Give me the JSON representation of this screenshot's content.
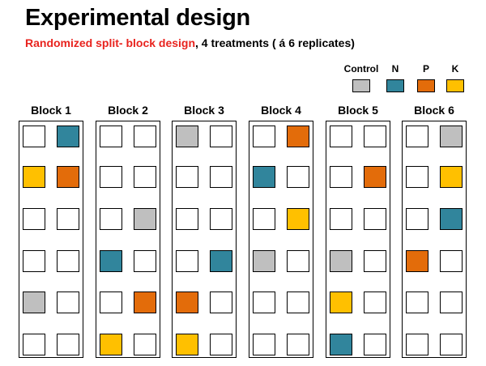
{
  "title": "Experimental design",
  "subtitle": {
    "design": "Randomized split- block design",
    "rest": ", 4 treatments ( ",
    "accent": "á",
    "tail": " 6 replicates)"
  },
  "legend": [
    {
      "key": "control",
      "label": "Control",
      "color": "#bfbfbf"
    },
    {
      "key": "n",
      "label": "N",
      "color": "#31859c"
    },
    {
      "key": "p",
      "label": "P",
      "color": "#e36c0a"
    },
    {
      "key": "k",
      "label": "K",
      "color": "#ffc000"
    }
  ],
  "blocks": [
    {
      "label": "Block 1",
      "rows": [
        [
          "empty",
          "n"
        ],
        [
          "k",
          "p"
        ],
        [
          "empty",
          "empty"
        ],
        [
          "empty",
          "empty"
        ],
        [
          "control",
          "empty"
        ],
        [
          "empty",
          "empty"
        ]
      ]
    },
    {
      "label": "Block 2",
      "rows": [
        [
          "empty",
          "empty"
        ],
        [
          "empty",
          "empty"
        ],
        [
          "empty",
          "control"
        ],
        [
          "n",
          "empty"
        ],
        [
          "empty",
          "p"
        ],
        [
          "k",
          "empty"
        ]
      ]
    },
    {
      "label": "Block 3",
      "rows": [
        [
          "control",
          "empty"
        ],
        [
          "empty",
          "empty"
        ],
        [
          "empty",
          "empty"
        ],
        [
          "empty",
          "n"
        ],
        [
          "p",
          "empty"
        ],
        [
          "k",
          "empty"
        ]
      ]
    },
    {
      "label": "Block 4",
      "rows": [
        [
          "empty",
          "p"
        ],
        [
          "n",
          "empty"
        ],
        [
          "empty",
          "k"
        ],
        [
          "control",
          "empty"
        ],
        [
          "empty",
          "empty"
        ],
        [
          "empty",
          "empty"
        ]
      ]
    },
    {
      "label": "Block 5",
      "rows": [
        [
          "empty",
          "empty"
        ],
        [
          "empty",
          "p"
        ],
        [
          "empty",
          "empty"
        ],
        [
          "control",
          "empty"
        ],
        [
          "k",
          "empty"
        ],
        [
          "n",
          "empty"
        ]
      ]
    },
    {
      "label": "Block 6",
      "rows": [
        [
          "empty",
          "control"
        ],
        [
          "empty",
          "k"
        ],
        [
          "empty",
          "n"
        ],
        [
          "p",
          "empty"
        ],
        [
          "empty",
          "empty"
        ],
        [
          "empty",
          "empty"
        ]
      ]
    }
  ]
}
